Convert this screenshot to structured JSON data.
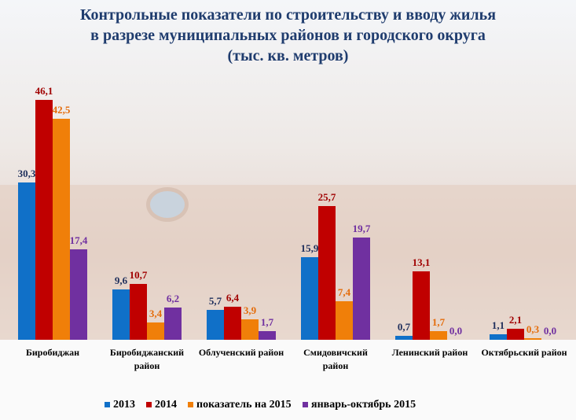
{
  "chart_data": {
    "type": "bar",
    "title": [
      "Контрольные  показатели по строительству  и вводу жилья",
      "в разрезе муниципальных  районов и городского округа",
      "(тыс.  кв.  метров)"
    ],
    "categories": [
      "Биробиджан",
      "Биробиджанский район",
      "Облученский район",
      "Смидовичский район",
      "Ленинский  район",
      "Октябрьский район"
    ],
    "series": [
      {
        "name": "2013",
        "color": "#1070c8",
        "label_color": "#1f2f5c",
        "values": [
          30.3,
          9.6,
          5.7,
          15.9,
          0.7,
          1.1
        ],
        "value_labels": [
          "30,3",
          "9,6",
          "5,7",
          "15,9",
          "0,7",
          "1,1"
        ]
      },
      {
        "name": "2014",
        "color": "#c00000",
        "label_color": "#a00000",
        "values": [
          46.1,
          10.7,
          6.4,
          25.7,
          13.1,
          2.1
        ],
        "value_labels": [
          "46,1",
          "10,7",
          "6,4",
          "25,7",
          "13,1",
          "2,1"
        ]
      },
      {
        "name": "показатель на 2015",
        "color": "#f07f09",
        "label_color": "#e46c0a",
        "values": [
          42.5,
          3.4,
          3.9,
          7.4,
          1.7,
          0.3
        ],
        "value_labels": [
          "42,5",
          "3,4",
          "3,9",
          "7,4",
          "1,7",
          "0,3"
        ]
      },
      {
        "name": "январь-октябрь 2015",
        "color": "#7030a0",
        "label_color": "#7030a0",
        "values": [
          17.4,
          6.2,
          1.7,
          19.7,
          0.0,
          0.0
        ],
        "value_labels": [
          "17,4",
          "6,2",
          "1,7",
          "19,7",
          "0,0",
          "0,0"
        ]
      }
    ]
  }
}
